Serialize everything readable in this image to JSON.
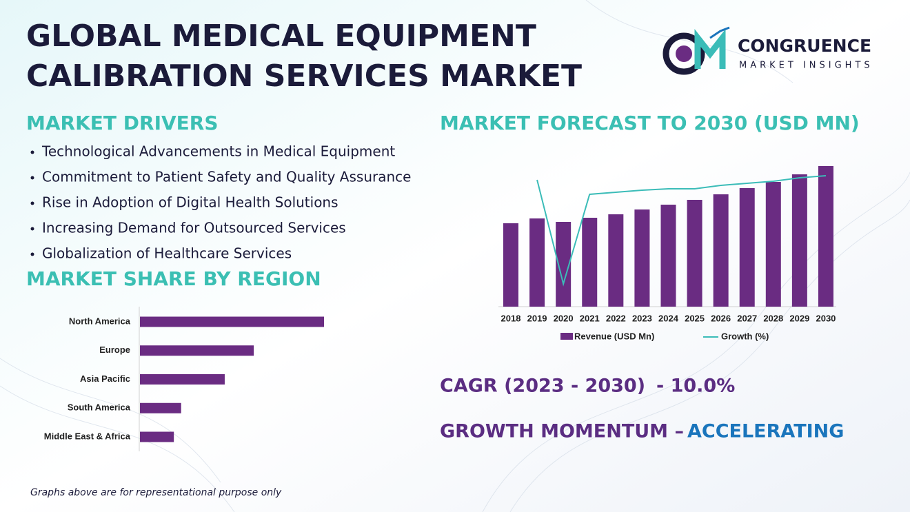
{
  "header": {
    "title_lines": [
      "GLOBAL MEDICAL EQUIPMENT",
      "CALIBRATION SERVICES MARKET"
    ],
    "logo_name": "CONGRUENCE",
    "logo_tagline": "MARKET INSIGHTS"
  },
  "drivers": {
    "heading": "MARKET DRIVERS",
    "items": [
      "Technological Advancements in Medical Equipment",
      "Commitment to Patient Safety and Quality Assurance",
      "Rise in Adoption of Digital Health Solutions",
      "Increasing Demand for Outsourced Services",
      "Globalization of Healthcare Services"
    ]
  },
  "chart_data": [
    {
      "type": "hbar",
      "title": "MARKET SHARE BY REGION",
      "categories": [
        "North America",
        "Europe",
        "Asia Pacific",
        "South America",
        "Middle East & Africa"
      ],
      "values": [
        38,
        23.5,
        17.5,
        8.5,
        7
      ],
      "color": "#6a2c82"
    },
    {
      "type": "combo",
      "title": "MARKET FORECAST TO 2030 (USD MN)",
      "categories": [
        "2018",
        "2019",
        "2020",
        "2021",
        "2022",
        "2023",
        "2024",
        "2025",
        "2026",
        "2027",
        "2028",
        "2029",
        "2030"
      ],
      "series": [
        {
          "name": "Revenue (USD Mn)",
          "color": "#6a2c82",
          "kind": "bar",
          "values": [
            121,
            128,
            123,
            129,
            134,
            141,
            148,
            155,
            163,
            172,
            181,
            192,
            204
          ]
        },
        {
          "name": "Growth (%)",
          "color": "#3bbcb8",
          "kind": "line",
          "values": [
            null,
            18.4,
            3.3,
            16.3,
            16.6,
            16.9,
            17.1,
            17.1,
            17.6,
            17.9,
            18.2,
            18.7,
            19.0
          ]
        }
      ]
    }
  ],
  "summary": {
    "cagr_label": "CAGR (2023 - 2030)",
    "cagr_value": "- 10.0%",
    "momentum_label": "GROWTH MOMENTUM –",
    "momentum_value": "ACCELERATING"
  },
  "footnote": "Graphs above are for representational purpose only"
}
